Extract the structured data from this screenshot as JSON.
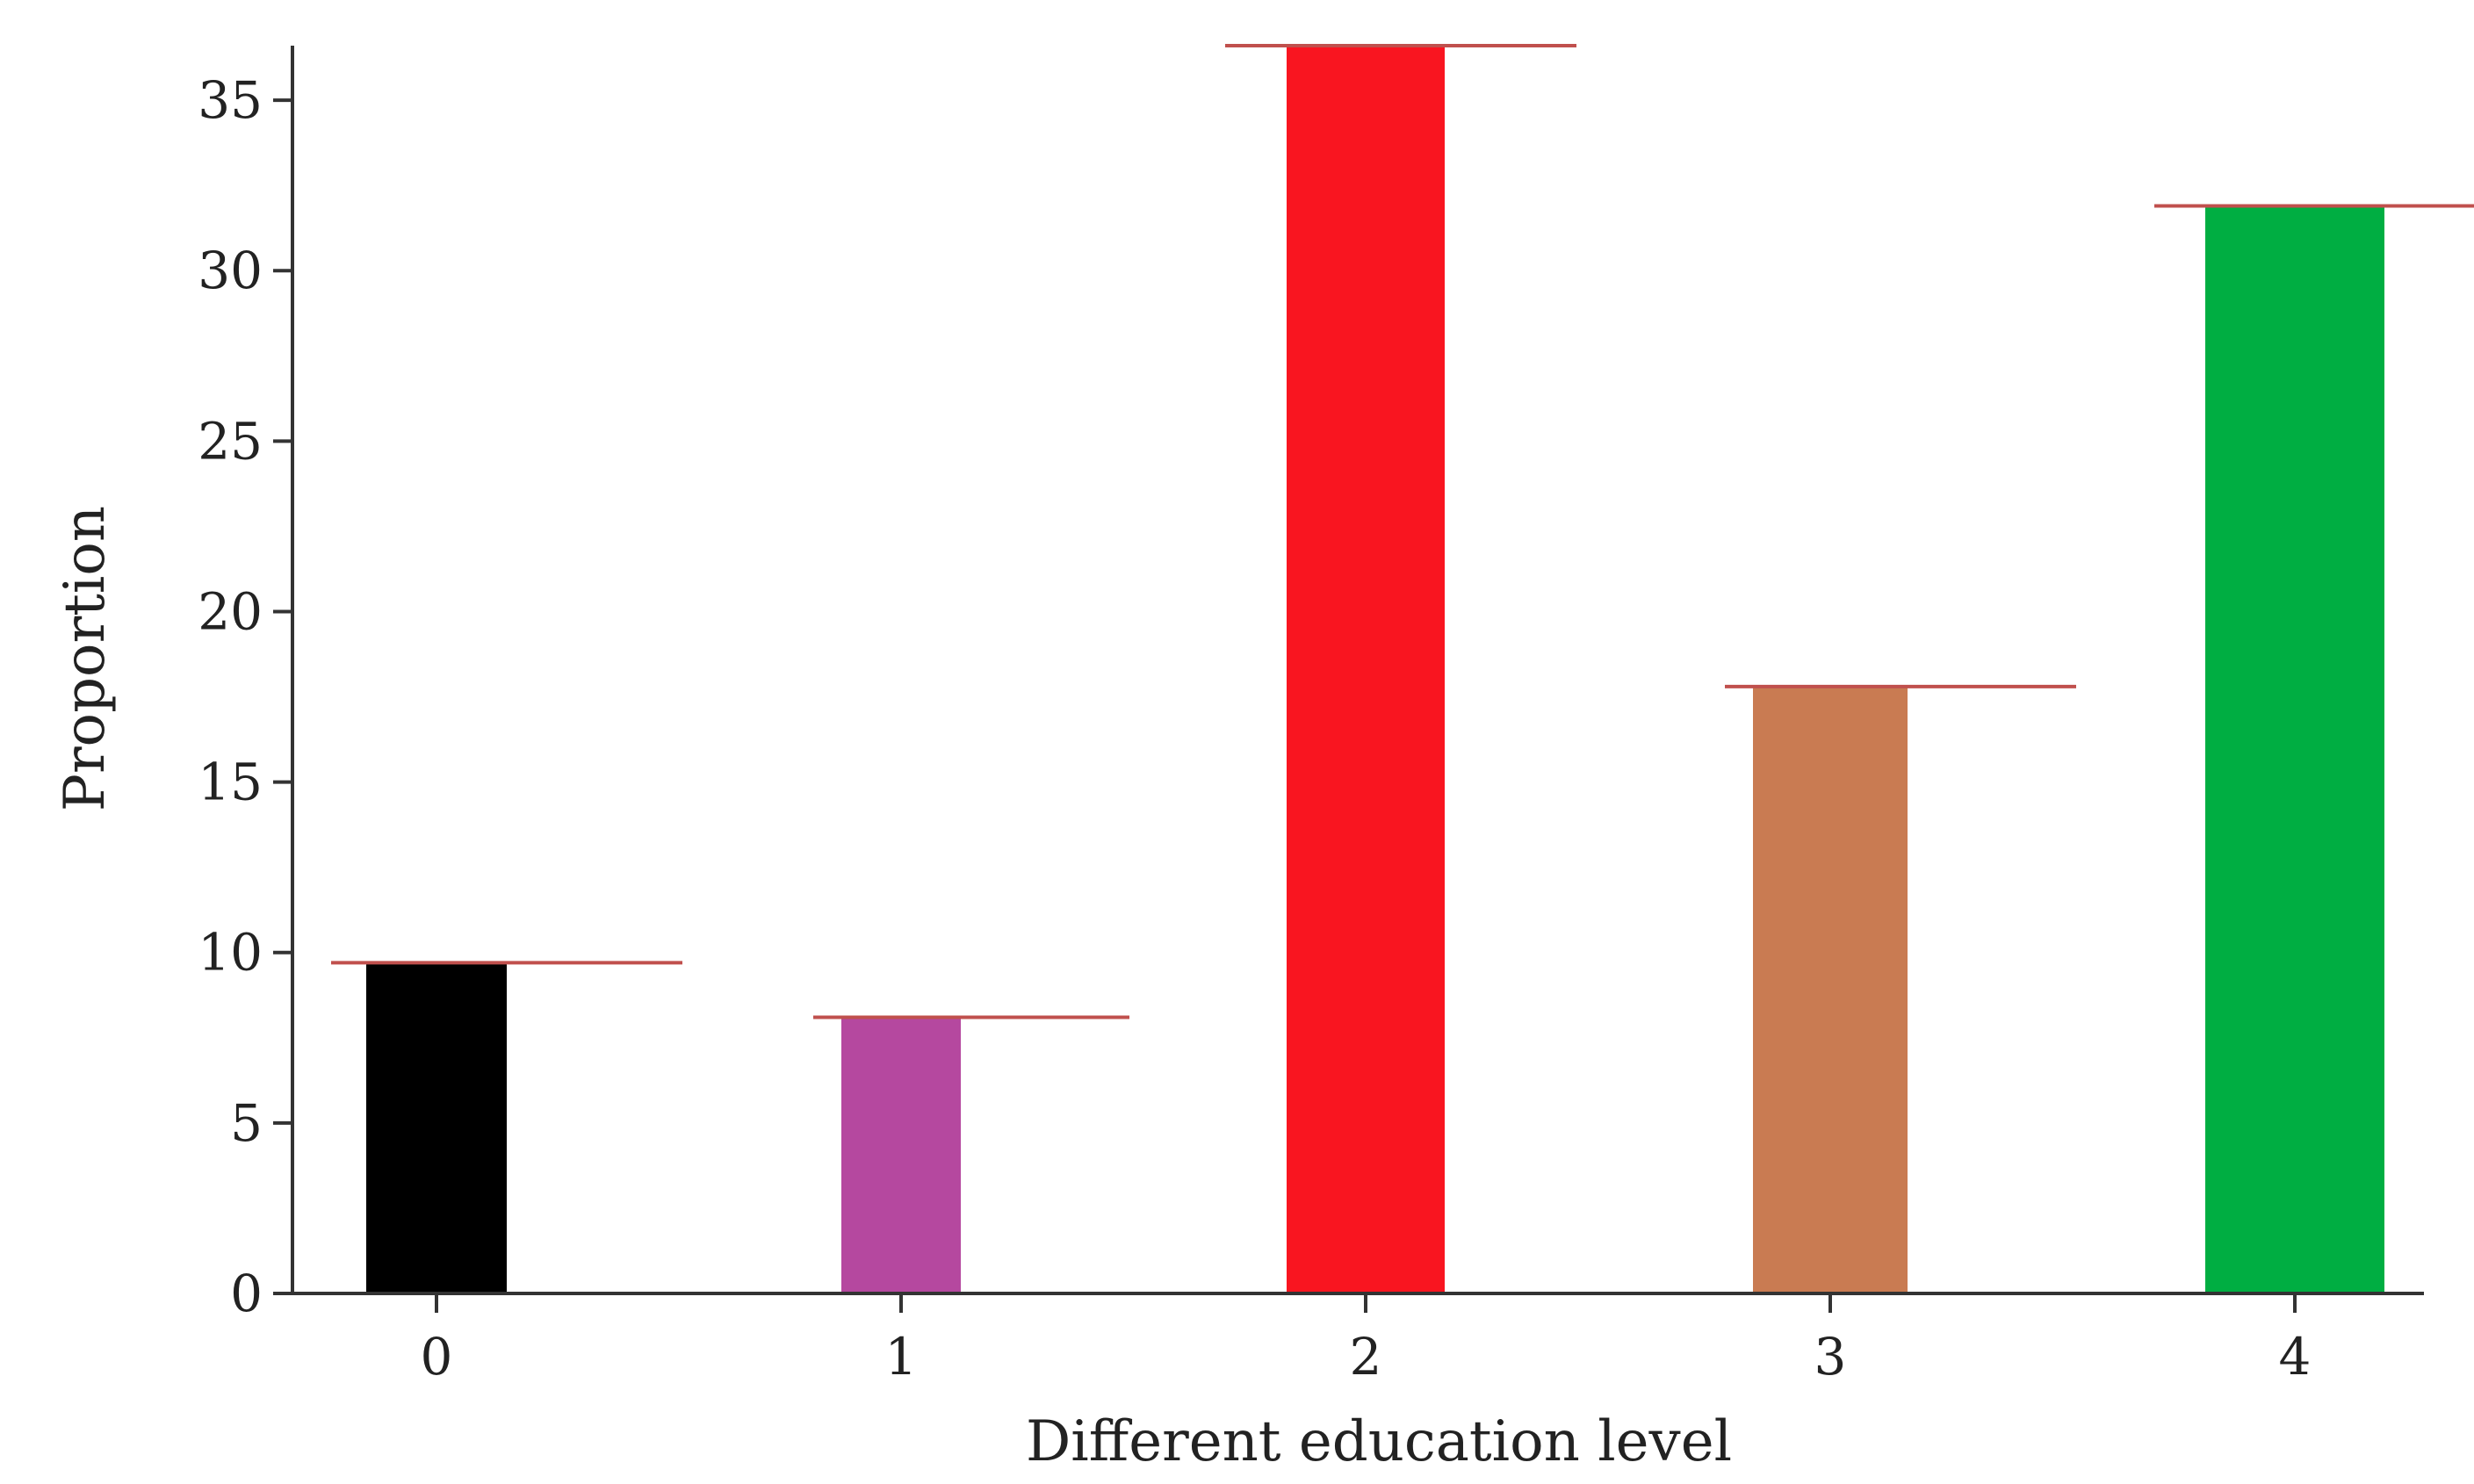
{
  "chart_data": {
    "type": "bar",
    "categories": [
      "0",
      "1",
      "2",
      "3",
      "4"
    ],
    "values": [
      9.7,
      8.1,
      36.6,
      17.8,
      31.9
    ],
    "colors": [
      "#000000",
      "#b5489f",
      "#f91520",
      "#c97b52",
      "#00ae42"
    ],
    "cap_color": "#c0504d",
    "cap_extents": [
      [
        -0.3,
        0.7
      ],
      [
        -0.25,
        0.65
      ],
      [
        -0.4,
        0.6
      ],
      [
        -0.3,
        0.7
      ],
      [
        -0.4,
        0.65
      ]
    ],
    "title": "",
    "xlabel": "Different education level",
    "ylabel": "Proportion",
    "ylim": [
      0,
      36.6
    ],
    "yticks": [
      0,
      5,
      10,
      15,
      20,
      25,
      30,
      35
    ],
    "grid": false,
    "legend": false
  }
}
